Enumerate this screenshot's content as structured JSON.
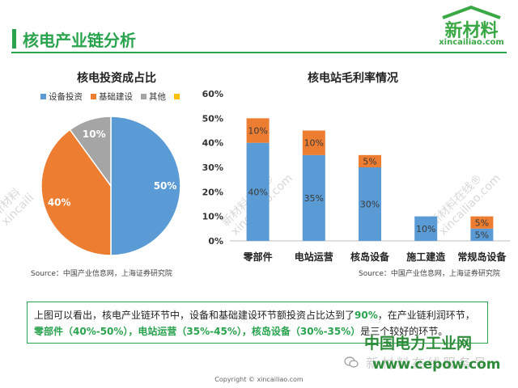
{
  "page": {
    "title": "核电产业链分析"
  },
  "logo": {
    "text": "新材料",
    "sub": "xincailiao.com"
  },
  "pie": {
    "title": "核电投资成占比",
    "source": "Source：中国产业信息网，上海证券研究院",
    "legend": [
      "设备投资",
      "基础建设",
      "其他",
      ""
    ]
  },
  "bar": {
    "title": "核电站毛利率情况",
    "source": "Source：中国产业信息网，上海证券研究院"
  },
  "summary": {
    "p1": "上图可以看出，核电产业链环节中，设备和基础建设环节额投资占比达到了",
    "p2": "90%",
    "p3": "，在产业链利润环节，",
    "p4": "零部件（40%-50%），电站运营（35%-45%），核岛设备（30%-35%）",
    "p5": "是三个较好的环节。"
  },
  "watermark": {
    "line1": "新材料在线®",
    "line2": "xincailiao.com",
    "short1": "新材料",
    "short2": "xincaili"
  },
  "footer": {
    "site_cn": "中国电力工业网",
    "site_faded": "新材料在线服务号",
    "site_url": "www.cepow.com",
    "copyright": "Copyright © xincailiao.com"
  },
  "colors": {
    "blue": "#5b9bd5",
    "orange": "#ed7d31",
    "gray": "#a5a5a5",
    "yellow": "#ffc000",
    "green": "#2aa34f"
  },
  "chart_data": [
    {
      "type": "pie",
      "title": "核电投资成占比",
      "categories": [
        "设备投资",
        "基础建设",
        "其他"
      ],
      "values": [
        50,
        40,
        10
      ],
      "labels": [
        "50%",
        "40%",
        "10%"
      ],
      "legend": "top"
    },
    {
      "type": "bar",
      "stacked": true,
      "title": "核电站毛利率情况",
      "categories": [
        "零部件",
        "电站运营",
        "核岛设备",
        "施工建造",
        "常规岛设备"
      ],
      "series": [
        {
          "values": [
            40,
            35,
            30,
            10,
            5
          ],
          "labels": [
            "40%",
            "35%",
            "30%",
            "10%",
            "5%"
          ]
        },
        {
          "values": [
            10,
            10,
            5,
            0,
            5
          ],
          "labels": [
            "10%",
            "10%",
            "5%",
            "",
            "5%"
          ]
        }
      ],
      "ylim": [
        0,
        60
      ],
      "yticks": [
        "0%",
        "10%",
        "20%",
        "30%",
        "40%",
        "50%",
        "60%"
      ],
      "grid": false
    }
  ]
}
